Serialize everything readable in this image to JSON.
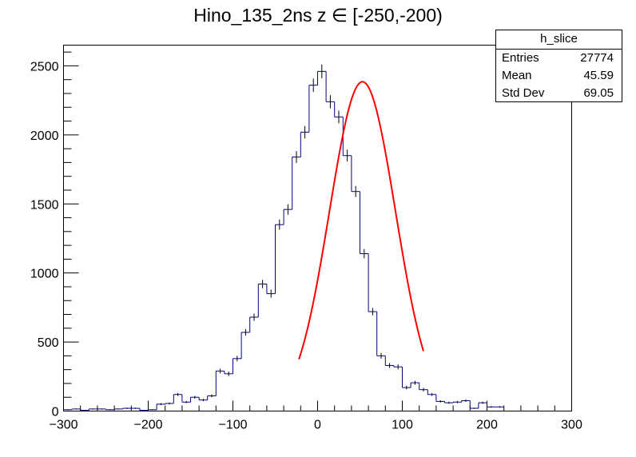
{
  "chart_data": {
    "type": "histogram",
    "title": "Hino_135_2ns z  ∈ [-250,-200)",
    "xlabel": "",
    "ylabel": "",
    "xlim": [
      -300,
      300
    ],
    "ylim": [
      0,
      2650
    ],
    "bin_width": 10,
    "x_ticks": [
      -300,
      -200,
      -100,
      0,
      100,
      200,
      300
    ],
    "x_tick_labels": [
      "−300",
      "−200",
      "−100",
      "0",
      "100",
      "200",
      "300"
    ],
    "y_ticks": [
      0,
      500,
      1000,
      1500,
      2000,
      2500
    ],
    "y_tick_labels": [
      "0",
      "500",
      "1000",
      "1500",
      "2000",
      "2500"
    ],
    "bin_edges_start": -300,
    "counts": [
      10,
      15,
      5,
      15,
      15,
      10,
      15,
      20,
      20,
      5,
      10,
      50,
      55,
      120,
      65,
      100,
      80,
      110,
      290,
      270,
      380,
      570,
      680,
      920,
      850,
      1350,
      1460,
      1840,
      2020,
      2360,
      2460,
      2240,
      2130,
      1850,
      1590,
      1140,
      720,
      400,
      330,
      320,
      170,
      205,
      155,
      120,
      70,
      60,
      65,
      75,
      20,
      60,
      30,
      30
    ],
    "histogram_color": "#00007f",
    "fit": {
      "type": "gaussian",
      "amplitude": 2385,
      "mean": 53,
      "sigma": 39,
      "x_range": [
        -22,
        125
      ],
      "color": "#ff0000"
    },
    "stats": {
      "name": "h_slice",
      "rows": [
        {
          "label": "Entries",
          "value": "27774"
        },
        {
          "label": "Mean",
          "value": "45.59"
        },
        {
          "label": "Std Dev",
          "value": "69.05"
        }
      ]
    }
  }
}
